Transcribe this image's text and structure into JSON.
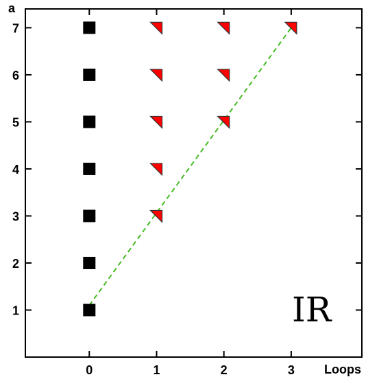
{
  "chart_data": {
    "type": "scatter",
    "xlabel": "Loops",
    "ylabel": "a",
    "x_ticks": [
      0,
      1,
      2,
      3
    ],
    "y_ticks": [
      1,
      2,
      3,
      4,
      5,
      6,
      7
    ],
    "xlim": [
      -0.95,
      4.05
    ],
    "ylim": [
      0.0,
      7.4
    ],
    "grid": false,
    "annotation": "IR",
    "series": [
      {
        "marker": "square",
        "color": "#000000",
        "points": [
          [
            0,
            1
          ],
          [
            0,
            2
          ],
          [
            0,
            3
          ],
          [
            0,
            4
          ],
          [
            0,
            5
          ],
          [
            0,
            6
          ],
          [
            0,
            7
          ]
        ]
      },
      {
        "marker": "triangle",
        "color": "#ff0000",
        "points": [
          [
            1,
            3
          ],
          [
            1,
            4
          ],
          [
            1,
            5
          ],
          [
            1,
            6
          ],
          [
            1,
            7
          ],
          [
            2,
            5
          ],
          [
            2,
            6
          ],
          [
            2,
            7
          ],
          [
            3,
            7
          ]
        ]
      }
    ],
    "line": {
      "style": "dashed",
      "color": "#44bb22",
      "points": [
        [
          0,
          1.1
        ],
        [
          3,
          7
        ]
      ]
    }
  }
}
